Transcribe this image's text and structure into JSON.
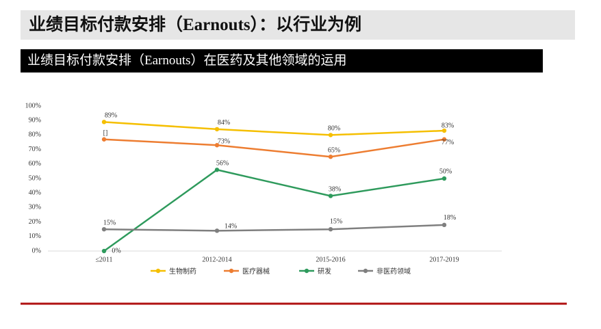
{
  "header": {
    "title": "业绩目标付款安排（Earnouts）：以行业为例",
    "subtitle": "业绩目标付款安排（Earnouts）在医药及其他领域的运用"
  },
  "chart_data": {
    "type": "line",
    "categories": [
      "≤2011",
      "2012-2014",
      "2015-2016",
      "2017-2019"
    ],
    "ylim": [
      0,
      100
    ],
    "yticks": [
      {
        "value": 0,
        "label": "0%"
      },
      {
        "value": 10,
        "label": "10%"
      },
      {
        "value": 20,
        "label": "20%"
      },
      {
        "value": 30,
        "label": "30%"
      },
      {
        "value": 40,
        "label": "40%"
      },
      {
        "value": 50,
        "label": "50%"
      },
      {
        "value": 60,
        "label": "60%"
      },
      {
        "value": 70,
        "label": "70%"
      },
      {
        "value": 80,
        "label": "80%"
      },
      {
        "value": 90,
        "label": "90%"
      },
      {
        "value": 100,
        "label": "100%"
      }
    ],
    "grid": false,
    "legend": "bottom",
    "series": [
      {
        "name": "生物制药",
        "color": "#f5bf00",
        "values": [
          89,
          84,
          80,
          83
        ],
        "value_labels": [
          "89%",
          "84%",
          "80%",
          "83%"
        ]
      },
      {
        "name": "医疗器械",
        "color": "#ed7d31",
        "values": [
          77,
          73,
          65,
          77
        ],
        "value_labels": [
          "[]",
          "73%",
          "65%",
          "77%"
        ]
      },
      {
        "name": "研发",
        "color": "#2e9a5c",
        "values": [
          0,
          56,
          38,
          50
        ],
        "value_labels": [
          "0%",
          "56%",
          "38%",
          "50%"
        ]
      },
      {
        "name": "非医药领域",
        "color": "#7f7f7f",
        "values": [
          15,
          14,
          15,
          18
        ],
        "value_labels": [
          "15%",
          "14%",
          "15%",
          "18%"
        ]
      }
    ]
  }
}
